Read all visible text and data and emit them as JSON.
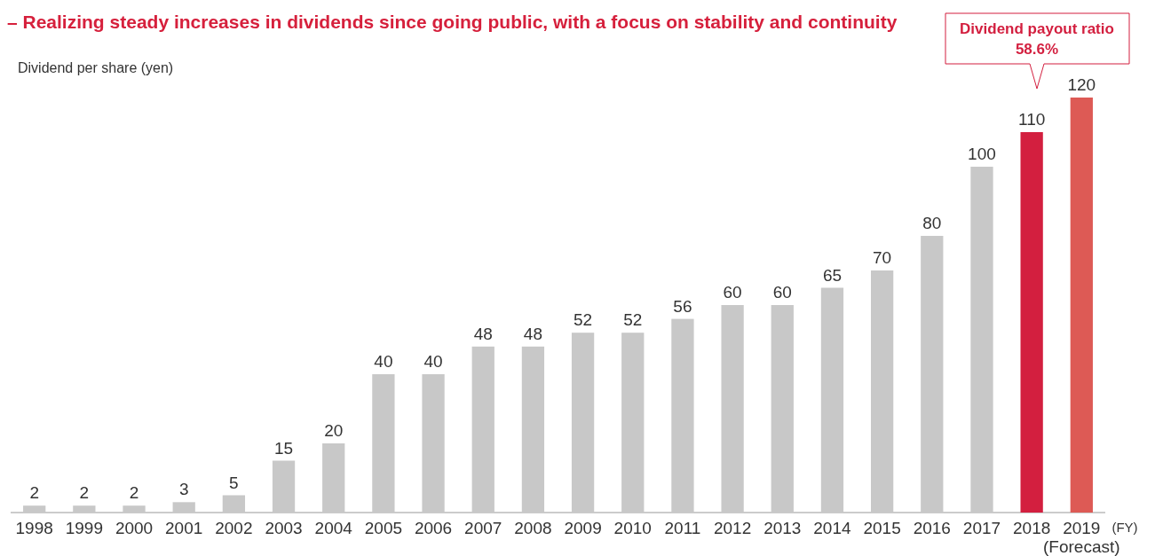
{
  "chart_data": {
    "type": "bar",
    "title": "– Realizing steady increases in dividends since going public, with a focus on stability and continuity",
    "ylabel": "Dividend per share (yen)",
    "xlabel": "(FY)",
    "categories": [
      "1998",
      "1999",
      "2000",
      "2001",
      "2002",
      "2003",
      "2004",
      "2005",
      "2006",
      "2007",
      "2008",
      "2009",
      "2010",
      "2011",
      "2012",
      "2013",
      "2014",
      "2015",
      "2016",
      "2017",
      "2018",
      "2019\n(Forecast)"
    ],
    "values": [
      2,
      2,
      2,
      3,
      5,
      15,
      20,
      40,
      40,
      48,
      48,
      52,
      52,
      56,
      60,
      60,
      65,
      70,
      80,
      100,
      110,
      120
    ],
    "colors": [
      "#c8c8c8",
      "#c8c8c8",
      "#c8c8c8",
      "#c8c8c8",
      "#c8c8c8",
      "#c8c8c8",
      "#c8c8c8",
      "#c8c8c8",
      "#c8c8c8",
      "#c8c8c8",
      "#c8c8c8",
      "#c8c8c8",
      "#c8c8c8",
      "#c8c8c8",
      "#c8c8c8",
      "#c8c8c8",
      "#c8c8c8",
      "#c8c8c8",
      "#c8c8c8",
      "#c8c8c8",
      "#d31f3f",
      "#dd5a55"
    ],
    "data_labels": true,
    "annotations": [
      "Dividend payout ratio\n58.6%"
    ]
  }
}
